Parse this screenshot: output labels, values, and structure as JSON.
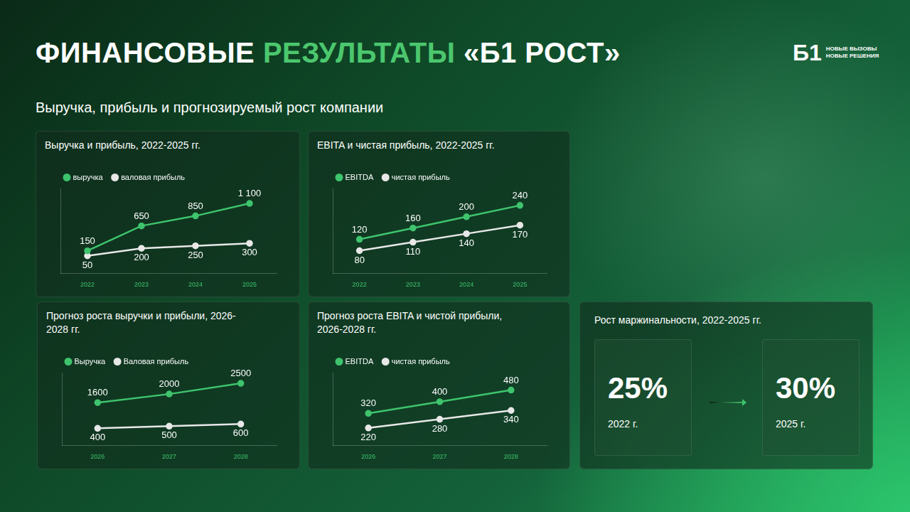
{
  "header": {
    "title_parts": [
      {
        "text": "ФИНАНСОВЫЕ",
        "color": "#ffffff"
      },
      {
        "text": "РЕЗУЛЬТАТЫ",
        "color": "#4cc76e"
      },
      {
        "text": "«Б1 РОСТ»",
        "color": "#ffffff"
      }
    ],
    "subtitle": "Выручка, прибыль и прогнозируемый рост компании"
  },
  "logo": {
    "mark": "Б1",
    "lines": [
      "НОВЫЕ ВЫЗОВЫ",
      "НОВЫЕ РЕШЕНИЯ"
    ]
  },
  "chart_data": [
    {
      "type": "line",
      "title": "Выручка и прибыль, 2022-2025 гг.",
      "categories": [
        "2022",
        "2023",
        "2024",
        "2025"
      ],
      "series": [
        {
          "name": "выручка",
          "color": "#3ec46d",
          "values": [
            150,
            650,
            850,
            1100
          ],
          "value_labels": [
            "150",
            "650",
            "850",
            "1 100"
          ]
        },
        {
          "name": "валовая прибыль",
          "color": "#e8e8e8",
          "values": [
            50,
            200,
            250,
            300
          ]
        }
      ],
      "ylim": [
        -300,
        1400
      ],
      "grid": false,
      "legend": "top left",
      "data_labels": true,
      "tick_labels": "x",
      "marker": "circle"
    },
    {
      "type": "line",
      "title": "EBITA и чистая прибыль, 2022-2025 гг.",
      "categories": [
        "2022",
        "2023",
        "2024",
        "2025"
      ],
      "series": [
        {
          "name": "EBITDA",
          "color": "#3ec46d",
          "values": [
            120,
            160,
            200,
            240
          ]
        },
        {
          "name": "чистая прибыль",
          "color": "#e8e8e8",
          "values": [
            80,
            110,
            140,
            170
          ]
        }
      ],
      "ylim": [
        0,
        300
      ],
      "grid": false,
      "legend": "top left",
      "data_labels": true,
      "tick_labels": "x",
      "marker": "circle"
    },
    {
      "type": "line",
      "title": "Прогноз роста выручки и прибыли, 2026-2028 гг.",
      "categories": [
        "2026",
        "2027",
        "2028"
      ],
      "series": [
        {
          "name": "Выручка",
          "color": "#3ec46d",
          "values": [
            1600,
            2000,
            2500
          ]
        },
        {
          "name": "Валовая прибыль",
          "color": "#e8e8e8",
          "values": [
            400,
            500,
            600
          ]
        }
      ],
      "ylim": [
        -400,
        3000
      ],
      "grid": false,
      "legend": "top left",
      "data_labels": true,
      "tick_labels": "x",
      "marker": "circle"
    },
    {
      "type": "line",
      "title": "Прогноз роста EBITA и чистой прибыли, 2026-2028 гг.",
      "categories": [
        "2026",
        "2027",
        "2028"
      ],
      "series": [
        {
          "name": "EBITDA",
          "color": "#3ec46d",
          "values": [
            320,
            400,
            480
          ]
        },
        {
          "name": "чистая прибыль",
          "color": "#e8e8e8",
          "values": [
            220,
            280,
            340
          ]
        }
      ],
      "ylim": [
        100,
        600
      ],
      "grid": false,
      "legend": "top left",
      "data_labels": true,
      "tick_labels": "x",
      "marker": "circle"
    }
  ],
  "margin_panel": {
    "title": "Рост маржинальности, 2022-2025 гг.",
    "items": [
      {
        "label": "25%",
        "year": "2022 г."
      },
      {
        "label": "30%",
        "year": "2025 г."
      }
    ]
  }
}
